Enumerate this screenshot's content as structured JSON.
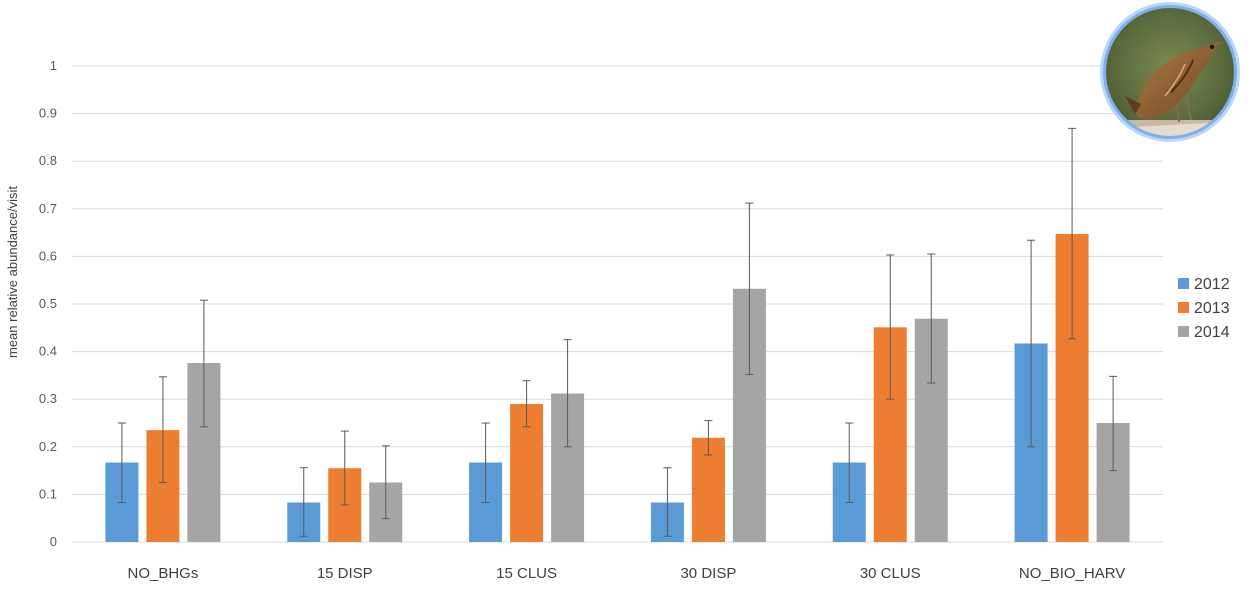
{
  "chart_data": {
    "type": "bar",
    "title": "",
    "xlabel": "",
    "ylabel": "mean relative abundance/visit",
    "ylim": [
      0,
      1
    ],
    "yticks": [
      "0",
      "0.1",
      "0.2",
      "0.3",
      "0.4",
      "0.5",
      "0.6",
      "0.7",
      "0.8",
      "0.9",
      "1"
    ],
    "categories": [
      "NO_BHGs",
      "15 DISP",
      "15 CLUS",
      "30 DISP",
      "30 CLUS",
      "NO_BIO_HARV"
    ],
    "series": [
      {
        "name": "2012",
        "color": "#5b9bd5",
        "values": [
          0.167,
          0.083,
          0.167,
          0.083,
          0.167,
          0.417
        ],
        "error": [
          [
            0.083,
            0.25
          ],
          [
            0.012,
            0.156
          ],
          [
            0.083,
            0.25
          ],
          [
            0.012,
            0.156
          ],
          [
            0.083,
            0.25
          ],
          [
            0.2,
            0.634
          ]
        ]
      },
      {
        "name": "2013",
        "color": "#ed7d31",
        "values": [
          0.235,
          0.155,
          0.29,
          0.219,
          0.451,
          0.647
        ],
        "error": [
          [
            0.125,
            0.347
          ],
          [
            0.078,
            0.233
          ],
          [
            0.242,
            0.339
          ],
          [
            0.183,
            0.255
          ],
          [
            0.3,
            0.603
          ],
          [
            0.427,
            0.869
          ]
        ]
      },
      {
        "name": "2014",
        "color": "#a5a5a5",
        "values": [
          0.376,
          0.125,
          0.312,
          0.532,
          0.469,
          0.25
        ],
        "error": [
          [
            0.242,
            0.508
          ],
          [
            0.049,
            0.202
          ],
          [
            0.2,
            0.425
          ],
          [
            0.352,
            0.712
          ],
          [
            0.334,
            0.605
          ],
          [
            0.15,
            0.348
          ]
        ]
      }
    ],
    "grid": true,
    "legend_position": "right"
  },
  "image": {
    "subject": "bird-photo",
    "border_color": "#8ab6f0"
  }
}
